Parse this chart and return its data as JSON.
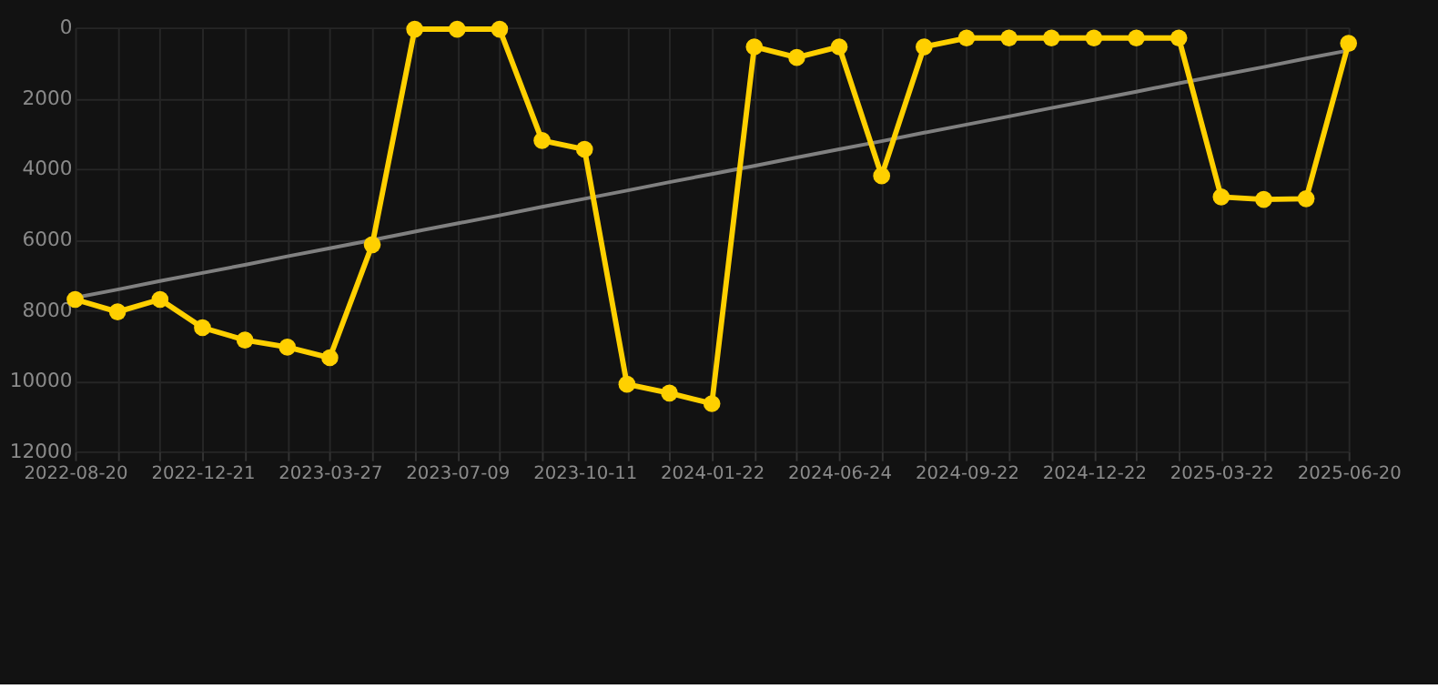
{
  "chart_data": {
    "type": "line",
    "categories": [
      "2022-08-20",
      null,
      null,
      "2022-12-21",
      null,
      null,
      "2023-03-27",
      null,
      null,
      "2023-07-09",
      null,
      null,
      "2023-10-11",
      null,
      null,
      "2024-01-22",
      null,
      null,
      "2024-06-24",
      null,
      null,
      "2024-09-22",
      null,
      null,
      "2024-12-22",
      null,
      null,
      "2025-03-22",
      null,
      null,
      "2025-06-20"
    ],
    "series": [
      {
        "color": "#ffd000",
        "marker": "circle",
        "values": [
          7700,
          8050,
          7700,
          8500,
          8850,
          9050,
          9350,
          6150,
          50,
          50,
          50,
          3200,
          3450,
          10100,
          10350,
          10650,
          550,
          850,
          550,
          4200,
          550,
          300,
          300,
          300,
          300,
          300,
          300,
          4800,
          4870,
          4850,
          450
        ]
      },
      {
        "type": "line",
        "color": "#808080",
        "marker": "none",
        "values": [
          7650,
          7420,
          7180,
          6950,
          6720,
          6480,
          6250,
          6020,
          5780,
          5550,
          5320,
          5080,
          4850,
          4620,
          4380,
          4150,
          3920,
          3680,
          3450,
          3220,
          2980,
          2750,
          2520,
          2280,
          2050,
          1820,
          1580,
          1350,
          1120,
          880,
          650
        ]
      }
    ],
    "ylim": [
      12000,
      0
    ],
    "yticks": [
      0,
      2000,
      4000,
      6000,
      8000,
      10000,
      12000
    ],
    "grid": true
  }
}
